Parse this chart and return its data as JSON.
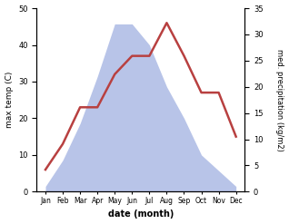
{
  "months": [
    "Jan",
    "Feb",
    "Mar",
    "Apr",
    "May",
    "Jun",
    "Jul",
    "Aug",
    "Sep",
    "Oct",
    "Nov",
    "Dec"
  ],
  "temperature": [
    6,
    13,
    23,
    23,
    32,
    37,
    37,
    46,
    37,
    27,
    27,
    15
  ],
  "precipitation": [
    1,
    6,
    13,
    22,
    32,
    32,
    28,
    20,
    14,
    7,
    4,
    1
  ],
  "temp_color": "#b84040",
  "precip_color": "#b8c4e8",
  "background_color": "#ffffff",
  "xlabel": "date (month)",
  "ylabel_left": "max temp (C)",
  "ylabel_right": "med. precipitation (kg/m2)",
  "ylim_left": [
    0,
    50
  ],
  "ylim_right": [
    0,
    35
  ],
  "yticks_left": [
    0,
    10,
    20,
    30,
    40,
    50
  ],
  "yticks_right": [
    0,
    5,
    10,
    15,
    20,
    25,
    30,
    35
  ]
}
